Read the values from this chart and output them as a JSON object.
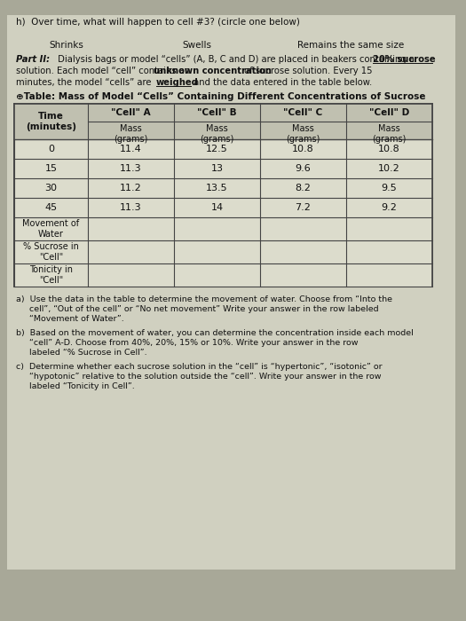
{
  "title_h": "h)  Over time, what will happen to cell #3? (circle one below)",
  "choices": [
    "Shrinks",
    "Swells",
    "Remains the same size"
  ],
  "part2_line1a": "Part II:",
  "part2_line1b": " Dialysis bags or model “cells” (A, B, C and D) are placed in beakers containing a ",
  "part2_line1c": "20% sucrose",
  "part2_line2a": "solution. Each model “cell” contains an ",
  "part2_line2b": "unknown concentration",
  "part2_line2c": " of sucrose solution. Every 15",
  "part2_line3a": "minutes, the model “cells” are ",
  "part2_line3b": "weighed",
  "part2_line3c": " and the data entered in the table below.",
  "table_title": "⊕Table: Mass of Model “Cells” Containing Different Concentrations of Sucrose",
  "col_headers": [
    "Time\n(minutes)",
    "\"Cell\" A",
    "\"Cell\" B",
    "\"Cell\" C",
    "\"Cell\" D"
  ],
  "rows": [
    [
      "0",
      "11.4",
      "12.5",
      "10.8",
      "10.8"
    ],
    [
      "15",
      "11.3",
      "13",
      "9.6",
      "10.2"
    ],
    [
      "30",
      "11.2",
      "13.5",
      "8.2",
      "9.5"
    ],
    [
      "45",
      "11.3",
      "14",
      "7.2",
      "9.2"
    ]
  ],
  "extra_rows": [
    "Movement of\nWater",
    "% Sucrose in\n\"Cell\"",
    "Tonicity in\n\"Cell\""
  ],
  "inst_a1": "a)  Use the data in the table to determine the movement of water. Choose from “Into the",
  "inst_a2": "     cell”, “Out of the cell” or “No net movement” Write your answer in the row labeled",
  "inst_a3": "     “Movement of Water”.",
  "inst_b1": "b)  Based on the movement of water, you can determine the concentration inside each model",
  "inst_b2": "     “cell” A-D. Choose from 40%, 20%, 15% or 10%. Write your answer in the row",
  "inst_b3": "     labeled “% Sucrose in Cell”.",
  "inst_c1": "c)  Determine whether each sucrose solution in the “cell” is “hypertonic”, “isotonic” or",
  "inst_c2": "     “hypotonic” relative to the solution outside the “cell”. Write your answer in the row",
  "inst_c3": "     labeled “Tonicity in Cell”.",
  "page_bg": "#a8a898",
  "content_bg": "#d0d0c0",
  "table_header_bg": "#c0c0b0",
  "table_row_bg": "#dcdccc",
  "table_border": "#444444",
  "text_color": "#111111"
}
